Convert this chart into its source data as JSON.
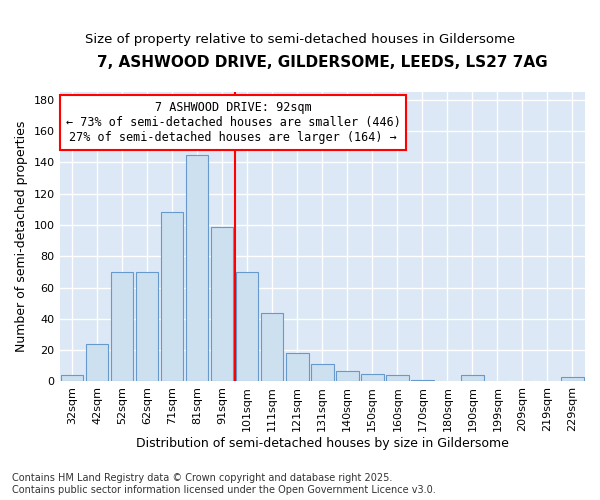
{
  "title": "7, ASHWOOD DRIVE, GILDERSOME, LEEDS, LS27 7AG",
  "subtitle": "Size of property relative to semi-detached houses in Gildersome",
  "xlabel": "Distribution of semi-detached houses by size in Gildersome",
  "ylabel": "Number of semi-detached properties",
  "categories": [
    "32sqm",
    "42sqm",
    "52sqm",
    "62sqm",
    "71sqm",
    "81sqm",
    "91sqm",
    "101sqm",
    "111sqm",
    "121sqm",
    "131sqm",
    "140sqm",
    "150sqm",
    "160sqm",
    "170sqm",
    "180sqm",
    "190sqm",
    "199sqm",
    "209sqm",
    "219sqm",
    "229sqm"
  ],
  "values": [
    4,
    24,
    70,
    70,
    108,
    145,
    99,
    70,
    44,
    18,
    11,
    7,
    5,
    4,
    1,
    0,
    4,
    0,
    0,
    0,
    3
  ],
  "bar_color": "#cce0f0",
  "bar_edge_color": "#6699cc",
  "vline_color": "red",
  "annotation_text_line1": "7 ASHWOOD DRIVE: 92sqm",
  "annotation_text_line2": "← 73% of semi-detached houses are smaller (446)",
  "annotation_text_line3": "27% of semi-detached houses are larger (164) →",
  "annotation_box_color": "white",
  "annotation_box_edge": "red",
  "fig_bg_color": "#ffffff",
  "plot_bg_color": "#dce8f5",
  "grid_color": "#ffffff",
  "ylim": [
    0,
    185
  ],
  "yticks": [
    0,
    20,
    40,
    60,
    80,
    100,
    120,
    140,
    160,
    180
  ],
  "footnote": "Contains HM Land Registry data © Crown copyright and database right 2025.\nContains public sector information licensed under the Open Government Licence v3.0.",
  "title_fontsize": 11,
  "subtitle_fontsize": 9.5,
  "ylabel_fontsize": 9,
  "xlabel_fontsize": 9,
  "footnote_fontsize": 7,
  "tick_fontsize": 8,
  "annotation_fontsize": 8.5
}
